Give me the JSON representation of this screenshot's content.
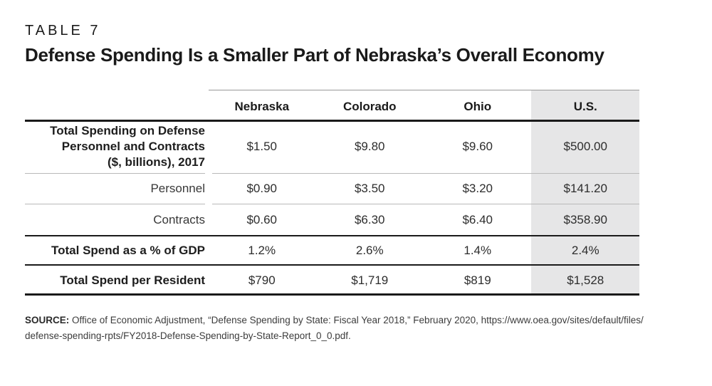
{
  "header": {
    "table_label": "TABLE 7",
    "title": "Defense Spending Is a Smaller Part of Nebraska’s Overall Economy"
  },
  "chart_data": {
    "type": "table",
    "columns": [
      "Nebraska",
      "Colorado",
      "Ohio",
      "U.S."
    ],
    "highlighted_column": "U.S.",
    "rows": [
      {
        "label": "Total Spending on Defense Personnel and Contracts ($, billions), 2017",
        "label_lines": [
          "Total Spending on Defense",
          "Personnel and Contracts",
          "($, billions), 2017"
        ],
        "emphasis": true,
        "values": [
          "$1.50",
          "$9.80",
          "$9.60",
          "$500.00"
        ]
      },
      {
        "label": "Personnel",
        "emphasis": false,
        "values": [
          "$0.90",
          "$3.50",
          "$3.20",
          "$141.20"
        ]
      },
      {
        "label": "Contracts",
        "emphasis": false,
        "values": [
          "$0.60",
          "$6.30",
          "$6.40",
          "$358.90"
        ]
      },
      {
        "label": "Total Spend as a % of GDP",
        "emphasis": true,
        "values": [
          "1.2%",
          "2.6%",
          "1.4%",
          "2.4%"
        ]
      },
      {
        "label": "Total Spend per Resident",
        "emphasis": true,
        "values": [
          "$790",
          "$1,719",
          "$819",
          "$1,528"
        ]
      }
    ]
  },
  "source": {
    "label": "SOURCE:",
    "line1": "Office of Economic Adjustment, “Defense Spending by State: Fiscal Year 2018,” February 2020, https://www.oea.gov/sites/default/files/",
    "line2": "defense-spending-rpts/FY2018-Defense-Spending-by-State-Report_0_0.pdf."
  },
  "colors": {
    "text_black": "#1a1a1a",
    "value_text": "#2d2d2d",
    "highlight_band": "#e6e6e7",
    "rule_black": "#1a1a1a",
    "rule_gray_top": "#999999",
    "rule_gray": "#b9b9b9"
  }
}
